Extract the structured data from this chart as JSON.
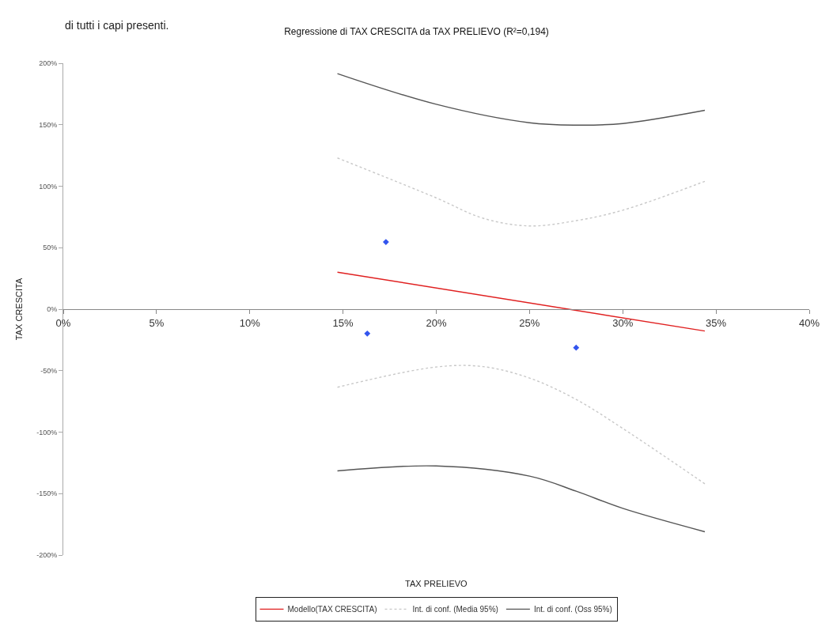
{
  "chart_data": {
    "type": "line",
    "title": "Regressione di TAX CRESCITA da TAX PRELIEVO (R²=0,194)",
    "xlabel": "TAX PRELIEVO",
    "ylabel": "TAX CRESCITA",
    "annotations": [
      "di tutti i capi presenti."
    ],
    "xlim": [
      0,
      40
    ],
    "xticks": [
      {
        "value": 0,
        "label": "0%"
      },
      {
        "value": 5,
        "label": "5%"
      },
      {
        "value": 10,
        "label": "10%"
      },
      {
        "value": 15,
        "label": "15%"
      },
      {
        "value": 20,
        "label": "20%"
      },
      {
        "value": 25,
        "label": "25%"
      },
      {
        "value": 30,
        "label": "30%"
      },
      {
        "value": 35,
        "label": "35%"
      },
      {
        "value": 40,
        "label": "40%"
      }
    ],
    "ylim": [
      -200,
      200
    ],
    "yticks": [
      {
        "value": -200,
        "label": "-200%"
      },
      {
        "value": -150,
        "label": "-150%"
      },
      {
        "value": -100,
        "label": "-100%"
      },
      {
        "value": -50,
        "label": "-50%"
      },
      {
        "value": 0,
        "label": "0%"
      },
      {
        "value": 50,
        "label": "50%"
      },
      {
        "value": 100,
        "label": "100%"
      },
      {
        "value": 150,
        "label": "150%"
      },
      {
        "value": 200,
        "label": "200%"
      }
    ],
    "legend": "bottom",
    "series": [
      {
        "type": "scatter",
        "marker": "diamond",
        "color": "#3355ee",
        "x": [
          17.3,
          16.3,
          27.5
        ],
        "values": [
          54.6,
          -19.8,
          -31.3
        ]
      },
      {
        "name": "Modello(TAX CRESCITA)",
        "color": "#e02020",
        "line_style": "solid",
        "x": [
          14.7,
          34.4
        ],
        "values": [
          30.1,
          -17.8
        ]
      },
      {
        "name": "Int. di conf. (Media 95%)",
        "color": "#c8c8c8",
        "line_style": "dotted",
        "x": [
          14.7,
          20,
          22.5,
          25,
          27.5,
          30,
          34.4
        ],
        "values": [
          123,
          90.5,
          74,
          67.7,
          72,
          80.5,
          104
        ]
      },
      {
        "color": "#c8c8c8",
        "line_style": "dotted",
        "x": [
          14.7,
          20,
          22.5,
          25,
          27.5,
          30,
          34.4
        ],
        "values": [
          -63.5,
          -47,
          -46.7,
          -56,
          -73.4,
          -97,
          -142
        ]
      },
      {
        "name": "Int. di conf. (Oss 95%)",
        "color": "#555555",
        "line_style": "solid",
        "x": [
          14.7,
          20,
          25,
          27.5,
          30,
          34.4
        ],
        "values": [
          191.6,
          166.6,
          151.6,
          149.7,
          151,
          161.7
        ]
      },
      {
        "color": "#555555",
        "line_style": "solid",
        "x": [
          14.7,
          20,
          25,
          27.5,
          30,
          34.4
        ],
        "values": [
          -131.5,
          -127.5,
          -135.8,
          -148,
          -162,
          -181
        ]
      }
    ]
  }
}
